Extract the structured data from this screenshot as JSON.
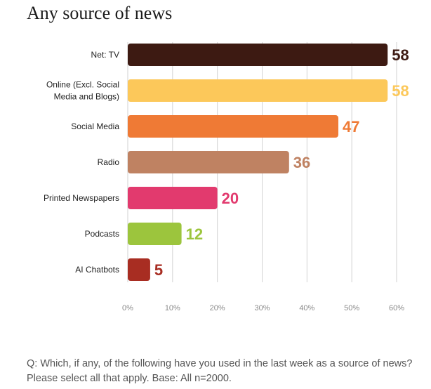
{
  "chart_data": {
    "type": "bar",
    "orientation": "horizontal",
    "title": "Any source of news",
    "categories": [
      [
        "Net: TV"
      ],
      [
        "Online (Excl. Social",
        "Media and Blogs)"
      ],
      [
        "Social Media"
      ],
      [
        "Radio"
      ],
      [
        "Printed Newspapers"
      ],
      [
        "Podcasts"
      ],
      [
        "AI Chatbots"
      ]
    ],
    "values": [
      58,
      58,
      47,
      36,
      20,
      12,
      5
    ],
    "value_labels": [
      "58",
      "58",
      "47",
      "36",
      "20",
      "12",
      "5"
    ],
    "colors": [
      "#3d1a12",
      "#fcc85a",
      "#ef7a35",
      "#bf8262",
      "#e23a6e",
      "#9cc53d",
      "#a82d22"
    ],
    "xlim": [
      0,
      60
    ],
    "x_ticks": [
      0,
      10,
      20,
      30,
      40,
      50,
      60
    ],
    "x_tick_labels": [
      "0%",
      "10%",
      "20%",
      "30%",
      "40%",
      "50%",
      "60%"
    ],
    "xlabel": "",
    "ylabel": "",
    "grid": "vertical",
    "legend": "none"
  },
  "footnote": "Q: Which, if any, of the following have you used in the last week as a source of news? Please select all that apply. Base: All n=2000."
}
